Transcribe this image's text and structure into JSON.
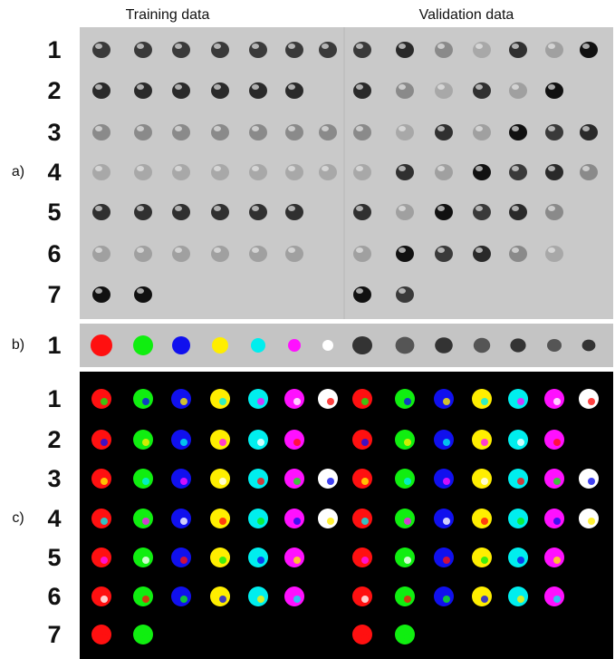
{
  "header": {
    "left": "Training data",
    "right": "Validation data"
  },
  "panels": [
    {
      "label": "a)",
      "rows": [
        "1",
        "2",
        "3",
        "4",
        "5",
        "6",
        "7"
      ]
    },
    {
      "label": "b)",
      "rows": [
        "1"
      ]
    },
    {
      "label": "c)",
      "rows": [
        "1",
        "2",
        "3",
        "4",
        "5",
        "6",
        "7"
      ]
    }
  ]
}
